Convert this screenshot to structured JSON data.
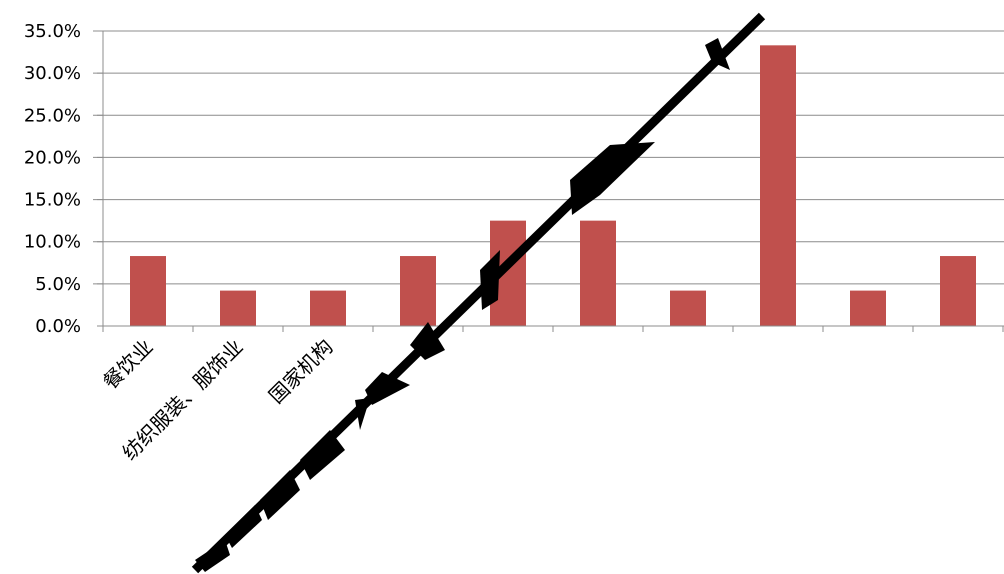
{
  "chart_data": {
    "type": "bar",
    "categories": [
      "餐饮业",
      "纺织服装、服饰业",
      "国家机构",
      "",
      "",
      "",
      "",
      "",
      "",
      ""
    ],
    "series": [
      {
        "values": [
          8.3,
          4.2,
          4.2,
          8.3,
          12.5,
          12.5,
          4.2,
          33.3,
          4.2,
          8.3
        ]
      }
    ],
    "y_tick_labels": [
      "0.0%",
      "5.0%",
      "10.0%",
      "15.0%",
      "20.0%",
      "25.0%",
      "30.0%",
      "35.0%"
    ],
    "ylim": [
      0,
      35
    ],
    "y_unit": "%",
    "grid": true,
    "legend": "none",
    "bar_color": "#C0504D",
    "overlay_graphic": "diagonal black garbled artifact line across chart"
  }
}
